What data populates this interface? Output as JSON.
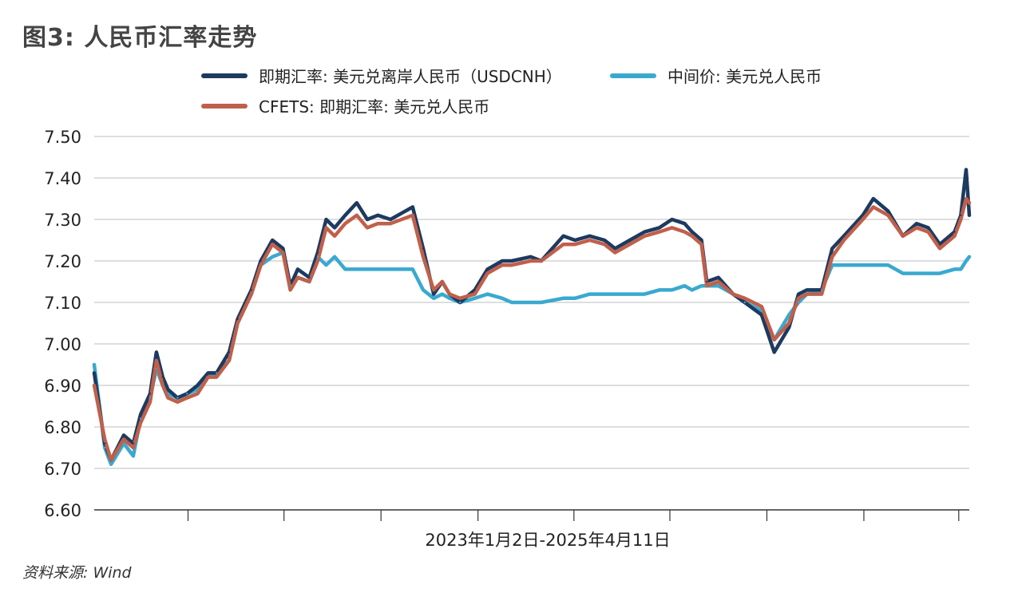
{
  "page": {
    "title": "图3: 人民币汇率走势",
    "source": "资料来源: Wind"
  },
  "chart_data": {
    "type": "line",
    "title": "图3: 人民币汇率走势",
    "xlabel": "2023年1月2日-2025年4月11日",
    "ylabel": "",
    "ylim": [
      6.6,
      7.5
    ],
    "y_ticks": [
      "7.50",
      "7.40",
      "7.30",
      "7.20",
      "7.10",
      "7.00",
      "6.90",
      "6.80",
      "6.70",
      "6.60"
    ],
    "x_domain": [
      "2023-01-02",
      "2025-04-11"
    ],
    "grid": "horizontal",
    "legend_position": "top",
    "series": [
      {
        "name": "即期汇率: 美元兑离岸人民币（USDCNH）",
        "color": "#1d3a5f",
        "x": [
          "2023-01-02",
          "2023-01-12",
          "2023-01-18",
          "2023-01-30",
          "2023-02-08",
          "2023-02-15",
          "2023-02-24",
          "2023-03-02",
          "2023-03-08",
          "2023-03-13",
          "2023-03-22",
          "2023-03-31",
          "2023-04-10",
          "2023-04-20",
          "2023-04-28",
          "2023-05-10",
          "2023-05-18",
          "2023-05-31",
          "2023-06-09",
          "2023-06-20",
          "2023-06-30",
          "2023-07-07",
          "2023-07-14",
          "2023-07-25",
          "2023-08-02",
          "2023-08-10",
          "2023-08-18",
          "2023-08-28",
          "2023-09-08",
          "2023-09-18",
          "2023-09-28",
          "2023-10-10",
          "2023-10-31",
          "2023-11-10",
          "2023-11-20",
          "2023-11-28",
          "2023-12-05",
          "2023-12-15",
          "2023-12-29",
          "2024-01-10",
          "2024-01-24",
          "2024-02-02",
          "2024-02-20",
          "2024-03-01",
          "2024-03-22",
          "2024-04-02",
          "2024-04-16",
          "2024-04-30",
          "2024-05-10",
          "2024-05-24",
          "2024-06-07",
          "2024-06-21",
          "2024-07-03",
          "2024-07-15",
          "2024-07-22",
          "2024-07-31",
          "2024-08-05",
          "2024-08-16",
          "2024-08-30",
          "2024-09-10",
          "2024-09-26",
          "2024-10-08",
          "2024-10-22",
          "2024-10-31",
          "2024-11-08",
          "2024-11-22",
          "2024-12-02",
          "2024-12-13",
          "2024-12-31",
          "2025-01-10",
          "2025-01-24",
          "2025-02-07",
          "2025-02-20",
          "2025-03-03",
          "2025-03-14",
          "2025-03-28",
          "2025-04-03",
          "2025-04-08",
          "2025-04-11"
        ],
        "values": [
          6.93,
          6.76,
          6.72,
          6.78,
          6.76,
          6.83,
          6.88,
          6.98,
          6.92,
          6.89,
          6.87,
          6.88,
          6.9,
          6.93,
          6.93,
          6.98,
          7.06,
          7.13,
          7.2,
          7.25,
          7.23,
          7.14,
          7.18,
          7.16,
          7.22,
          7.3,
          7.28,
          7.31,
          7.34,
          7.3,
          7.31,
          7.3,
          7.33,
          7.23,
          7.12,
          7.15,
          7.12,
          7.1,
          7.13,
          7.18,
          7.2,
          7.2,
          7.21,
          7.2,
          7.26,
          7.25,
          7.26,
          7.25,
          7.23,
          7.25,
          7.27,
          7.28,
          7.3,
          7.29,
          7.27,
          7.25,
          7.15,
          7.16,
          7.12,
          7.1,
          7.07,
          6.98,
          7.04,
          7.12,
          7.13,
          7.13,
          7.23,
          7.26,
          7.31,
          7.35,
          7.32,
          7.26,
          7.29,
          7.28,
          7.24,
          7.27,
          7.31,
          7.42,
          7.31
        ]
      },
      {
        "name": "中间价: 美元兑人民币",
        "color": "#3aa9cf",
        "x": [
          "2023-01-02",
          "2023-01-12",
          "2023-01-18",
          "2023-01-30",
          "2023-02-08",
          "2023-02-15",
          "2023-02-24",
          "2023-03-02",
          "2023-03-08",
          "2023-03-13",
          "2023-03-22",
          "2023-03-31",
          "2023-04-10",
          "2023-04-20",
          "2023-04-28",
          "2023-05-10",
          "2023-05-18",
          "2023-05-31",
          "2023-06-09",
          "2023-06-20",
          "2023-06-30",
          "2023-07-07",
          "2023-07-14",
          "2023-07-25",
          "2023-08-02",
          "2023-08-10",
          "2023-08-18",
          "2023-08-28",
          "2023-09-08",
          "2023-09-18",
          "2023-09-28",
          "2023-10-10",
          "2023-10-31",
          "2023-11-10",
          "2023-11-20",
          "2023-11-28",
          "2023-12-05",
          "2023-12-15",
          "2023-12-29",
          "2024-01-10",
          "2024-01-24",
          "2024-02-02",
          "2024-02-20",
          "2024-03-01",
          "2024-03-22",
          "2024-04-02",
          "2024-04-16",
          "2024-04-30",
          "2024-05-10",
          "2024-05-24",
          "2024-06-07",
          "2024-06-21",
          "2024-07-03",
          "2024-07-15",
          "2024-07-22",
          "2024-07-31",
          "2024-08-05",
          "2024-08-16",
          "2024-08-30",
          "2024-09-10",
          "2024-09-26",
          "2024-10-08",
          "2024-10-22",
          "2024-10-31",
          "2024-11-08",
          "2024-11-22",
          "2024-12-02",
          "2024-12-13",
          "2024-12-31",
          "2025-01-10",
          "2025-01-24",
          "2025-02-07",
          "2025-02-20",
          "2025-03-03",
          "2025-03-14",
          "2025-03-28",
          "2025-04-03",
          "2025-04-08",
          "2025-04-11"
        ],
        "values": [
          6.95,
          6.75,
          6.71,
          6.76,
          6.73,
          6.82,
          6.87,
          6.94,
          6.9,
          6.88,
          6.87,
          6.88,
          6.89,
          6.92,
          6.93,
          6.96,
          7.05,
          7.12,
          7.19,
          7.21,
          7.22,
          7.14,
          7.16,
          7.15,
          7.21,
          7.19,
          7.21,
          7.18,
          7.18,
          7.18,
          7.18,
          7.18,
          7.18,
          7.13,
          7.11,
          7.12,
          7.11,
          7.1,
          7.11,
          7.12,
          7.11,
          7.1,
          7.1,
          7.1,
          7.11,
          7.11,
          7.12,
          7.12,
          7.12,
          7.12,
          7.12,
          7.13,
          7.13,
          7.14,
          7.13,
          7.14,
          7.14,
          7.14,
          7.12,
          7.1,
          7.08,
          7.01,
          7.07,
          7.1,
          7.12,
          7.13,
          7.19,
          7.19,
          7.19,
          7.19,
          7.19,
          7.17,
          7.17,
          7.17,
          7.17,
          7.18,
          7.18,
          7.2,
          7.21
        ]
      },
      {
        "name": "CFETS: 即期汇率: 美元兑人民币",
        "color": "#c0604a",
        "x": [
          "2023-01-02",
          "2023-01-12",
          "2023-01-18",
          "2023-01-30",
          "2023-02-08",
          "2023-02-15",
          "2023-02-24",
          "2023-03-02",
          "2023-03-08",
          "2023-03-13",
          "2023-03-22",
          "2023-03-31",
          "2023-04-10",
          "2023-04-20",
          "2023-04-28",
          "2023-05-10",
          "2023-05-18",
          "2023-05-31",
          "2023-06-09",
          "2023-06-20",
          "2023-06-30",
          "2023-07-07",
          "2023-07-14",
          "2023-07-25",
          "2023-08-02",
          "2023-08-10",
          "2023-08-18",
          "2023-08-28",
          "2023-09-08",
          "2023-09-18",
          "2023-09-28",
          "2023-10-10",
          "2023-10-31",
          "2023-11-10",
          "2023-11-20",
          "2023-11-28",
          "2023-12-05",
          "2023-12-15",
          "2023-12-29",
          "2024-01-10",
          "2024-01-24",
          "2024-02-02",
          "2024-02-20",
          "2024-03-01",
          "2024-03-22",
          "2024-04-02",
          "2024-04-16",
          "2024-04-30",
          "2024-05-10",
          "2024-05-24",
          "2024-06-07",
          "2024-06-21",
          "2024-07-03",
          "2024-07-15",
          "2024-07-22",
          "2024-07-31",
          "2024-08-05",
          "2024-08-16",
          "2024-08-30",
          "2024-09-10",
          "2024-09-26",
          "2024-10-08",
          "2024-10-22",
          "2024-10-31",
          "2024-11-08",
          "2024-11-22",
          "2024-12-02",
          "2024-12-13",
          "2024-12-31",
          "2025-01-10",
          "2025-01-24",
          "2025-02-07",
          "2025-02-20",
          "2025-03-03",
          "2025-03-14",
          "2025-03-28",
          "2025-04-03",
          "2025-04-08",
          "2025-04-11"
        ],
        "values": [
          6.9,
          6.77,
          6.72,
          6.77,
          6.75,
          6.81,
          6.86,
          6.96,
          6.9,
          6.87,
          6.86,
          6.87,
          6.88,
          6.92,
          6.92,
          6.96,
          7.05,
          7.12,
          7.19,
          7.24,
          7.22,
          7.13,
          7.16,
          7.15,
          7.2,
          7.28,
          7.26,
          7.29,
          7.31,
          7.28,
          7.29,
          7.29,
          7.31,
          7.21,
          7.13,
          7.15,
          7.12,
          7.11,
          7.12,
          7.17,
          7.19,
          7.19,
          7.2,
          7.2,
          7.24,
          7.24,
          7.25,
          7.24,
          7.22,
          7.24,
          7.26,
          7.27,
          7.28,
          7.27,
          7.26,
          7.24,
          7.14,
          7.15,
          7.12,
          7.11,
          7.09,
          7.01,
          7.05,
          7.11,
          7.12,
          7.12,
          7.21,
          7.25,
          7.3,
          7.33,
          7.31,
          7.26,
          7.28,
          7.27,
          7.23,
          7.26,
          7.3,
          7.35,
          7.34
        ]
      }
    ]
  }
}
